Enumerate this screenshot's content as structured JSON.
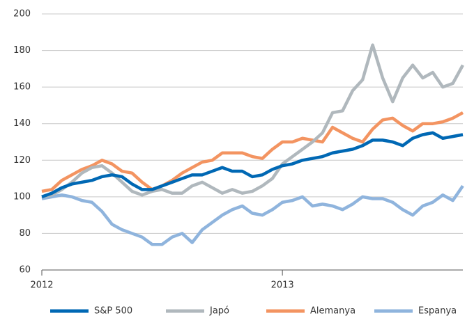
{
  "chart_data": {
    "type": "line",
    "categories": [
      "2012",
      null,
      null,
      null,
      null,
      null,
      null,
      null,
      null,
      null,
      null,
      null,
      null,
      null,
      null,
      null,
      null,
      null,
      null,
      null,
      null,
      null,
      null,
      null,
      "2013",
      null,
      null,
      null,
      null,
      null,
      null,
      null,
      null,
      null,
      null,
      null,
      null,
      null,
      null,
      null,
      null,
      null,
      null
    ],
    "series": [
      {
        "name": "Espanya",
        "color": "#8fb4dd",
        "values": [
          99,
          100,
          101,
          100,
          98,
          97,
          92,
          85,
          82,
          80,
          78,
          74,
          74,
          78,
          80,
          75,
          82,
          86,
          90,
          93,
          95,
          91,
          90,
          93,
          97,
          98,
          100,
          95,
          96,
          95,
          93,
          96,
          100,
          99,
          99,
          97,
          93,
          90,
          95,
          97,
          101,
          98,
          106
        ]
      },
      {
        "name": "Alemanya",
        "color": "#f39461",
        "values": [
          103,
          104,
          109,
          112,
          115,
          117,
          120,
          118,
          114,
          113,
          108,
          104,
          106,
          109,
          113,
          116,
          119,
          120,
          124,
          124,
          124,
          122,
          121,
          126,
          130,
          130,
          132,
          131,
          130,
          138,
          135,
          132,
          130,
          137,
          142,
          143,
          139,
          136,
          140,
          140,
          141,
          143,
          146
        ]
      },
      {
        "name": "Japó",
        "color": "#b0b8bd",
        "values": [
          100,
          101,
          104,
          108,
          113,
          116,
          117,
          113,
          108,
          103,
          101,
          103,
          104,
          102,
          102,
          106,
          108,
          105,
          102,
          104,
          102,
          103,
          106,
          110,
          118,
          122,
          126,
          130,
          135,
          146,
          147,
          158,
          164,
          183,
          165,
          152,
          165,
          172,
          165,
          168,
          160,
          162,
          172
        ]
      },
      {
        "name": "S&P 500",
        "color": "#0068b4",
        "values": [
          100,
          102,
          105,
          107,
          108,
          109,
          111,
          112,
          111,
          107,
          104,
          104,
          106,
          108,
          110,
          112,
          112,
          114,
          116,
          114,
          114,
          111,
          112,
          115,
          117,
          118,
          120,
          121,
          122,
          124,
          125,
          126,
          128,
          131,
          131,
          130,
          128,
          132,
          134,
          135,
          132,
          133,
          134
        ]
      }
    ],
    "legend_order": [
      "S&P 500",
      "Japó",
      "Alemanya",
      "Espanya"
    ],
    "ylim": [
      60,
      200
    ],
    "yticks": [
      60,
      80,
      100,
      120,
      140,
      160,
      180,
      200
    ],
    "grid": true
  }
}
